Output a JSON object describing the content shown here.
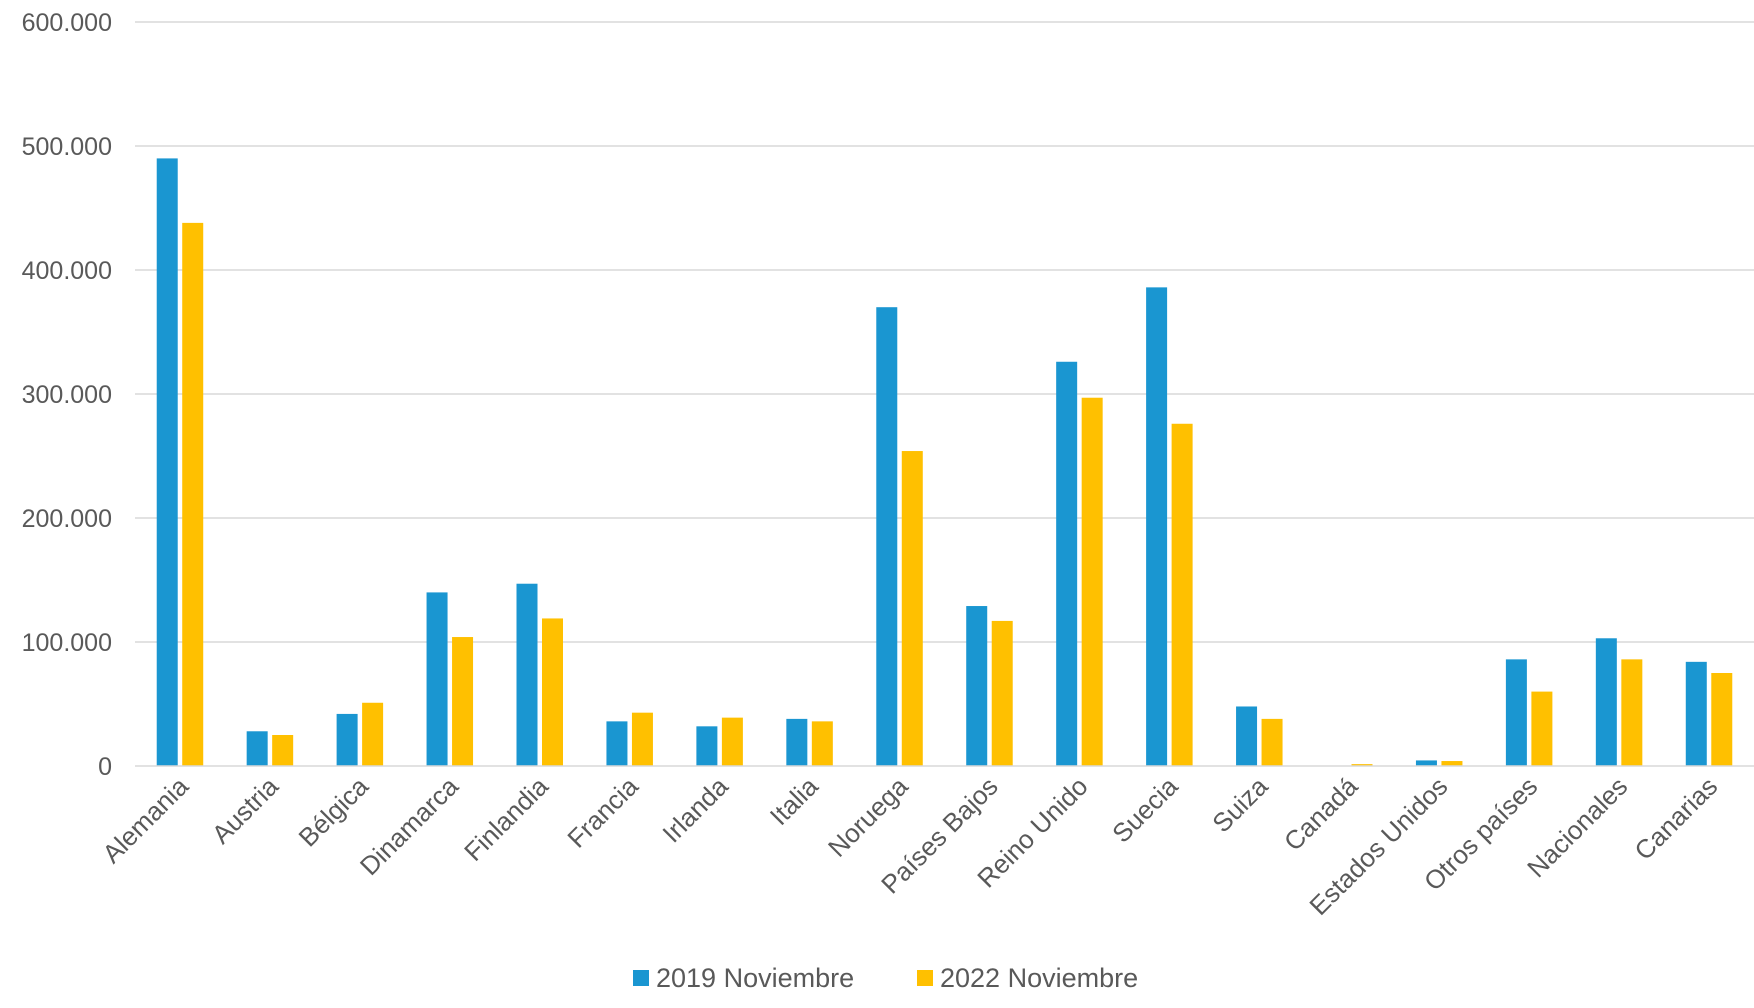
{
  "chart_data": {
    "type": "bar",
    "title": "",
    "xlabel": "",
    "ylabel": "",
    "ylim": [
      0,
      600000
    ],
    "yticks": [
      0,
      100000,
      200000,
      300000,
      400000,
      500000,
      600000
    ],
    "ytick_labels": [
      "0",
      "100.000",
      "200.000",
      "300.000",
      "400.000",
      "500.000",
      "600.000"
    ],
    "grid": true,
    "legend_position": "bottom",
    "categories": [
      "Alemania",
      "Austria",
      "Bélgica",
      "Dinamarca",
      "Finlandia",
      "Francia",
      "Irlanda",
      "Italia",
      "Noruega",
      "Países Bajos",
      "Reino Unido",
      "Suecia",
      "Suiza",
      "Canadá",
      "Estados Unidos",
      "Otros países",
      "Nacionales",
      "Canarias"
    ],
    "series": [
      {
        "name": "2019 Noviembre",
        "color": "#1a96d1",
        "values": [
          490000,
          28000,
          42000,
          140000,
          147000,
          36000,
          32000,
          38000,
          370000,
          129000,
          326000,
          386000,
          48000,
          0,
          4500,
          86000,
          103000,
          84000
        ]
      },
      {
        "name": "2022 Noviembre",
        "color": "#ffc000",
        "values": [
          438000,
          25000,
          51000,
          104000,
          119000,
          43000,
          39000,
          36000,
          254000,
          117000,
          297000,
          276000,
          38000,
          1500,
          4000,
          60000,
          86000,
          75000
        ]
      }
    ]
  }
}
